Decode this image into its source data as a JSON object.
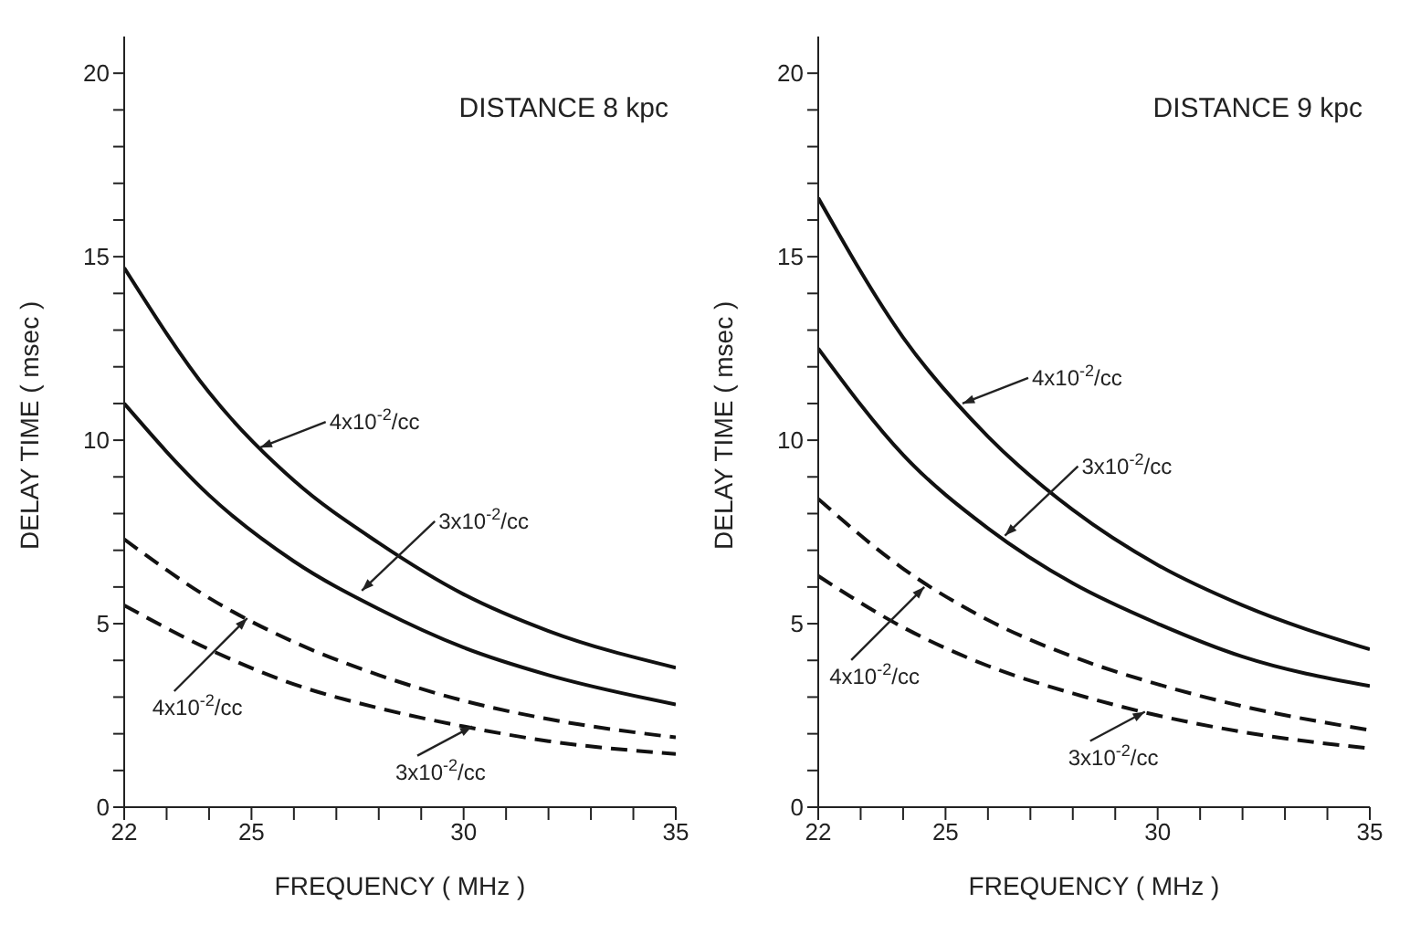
{
  "chart_data": [
    {
      "type": "line",
      "title": "DISTANCE 8 kpc",
      "xlabel": "FREQUENCY ( MHz )",
      "ylabel": "DELAY TIME ( msec )",
      "x": [
        22,
        24,
        26,
        28,
        30,
        32,
        35
      ],
      "series": [
        {
          "color": "#111111",
          "line_style": "solid",
          "values": [
            14.7,
            11.3,
            8.9,
            7.2,
            5.8,
            4.8,
            3.8
          ]
        },
        {
          "color": "#111111",
          "line_style": "solid",
          "values": [
            11.0,
            8.5,
            6.7,
            5.4,
            4.35,
            3.6,
            2.8
          ]
        },
        {
          "color": "#111111",
          "line_style": "dashed",
          "values": [
            7.3,
            5.7,
            4.5,
            3.6,
            2.9,
            2.4,
            1.9
          ]
        },
        {
          "color": "#111111",
          "line_style": "dashed",
          "values": [
            5.5,
            4.3,
            3.35,
            2.7,
            2.2,
            1.8,
            1.45
          ]
        }
      ],
      "annotations": [
        {
          "text": "4x10$^{-2}$/cc",
          "x": 25.2,
          "y": 9.8
        },
        {
          "text": "3x10$^{-2}$/cc",
          "x": 27.6,
          "y": 5.9
        },
        {
          "text": "4x10$^{-2}$/cc",
          "x": 24.9,
          "y": 5.15
        },
        {
          "text": "3x10$^{-2}$/cc",
          "x": 30.2,
          "y": 2.2
        }
      ],
      "xlim": [
        22,
        35
      ],
      "xticks": [
        22,
        {
          "value": 23,
          "label": null
        },
        {
          "value": 24,
          "label": null
        },
        25,
        {
          "value": 26,
          "label": null
        },
        {
          "value": 27,
          "label": null
        },
        {
          "value": 28,
          "label": null
        },
        {
          "value": 29,
          "label": null
        },
        30,
        {
          "value": 31,
          "label": null
        },
        {
          "value": 32,
          "label": null
        },
        {
          "value": 33,
          "label": null
        },
        {
          "value": 34,
          "label": null
        },
        35
      ],
      "ylim": [
        0,
        21
      ],
      "yticks": [
        0,
        {
          "value": 1,
          "label": null
        },
        {
          "value": 2,
          "label": null
        },
        {
          "value": 3,
          "label": null
        },
        {
          "value": 4,
          "label": null
        },
        5,
        {
          "value": 6,
          "label": null
        },
        {
          "value": 7,
          "label": null
        },
        {
          "value": 8,
          "label": null
        },
        {
          "value": 9,
          "label": null
        },
        10,
        {
          "value": 11,
          "label": null
        },
        {
          "value": 12,
          "label": null
        },
        {
          "value": 13,
          "label": null
        },
        {
          "value": 14,
          "label": null
        },
        15,
        {
          "value": 16,
          "label": null
        },
        {
          "value": 17,
          "label": null
        },
        {
          "value": 18,
          "label": null
        },
        {
          "value": 19,
          "label": null
        },
        20
      ],
      "grid": false,
      "legend": false,
      "marker": "none"
    },
    {
      "type": "line",
      "title": "DISTANCE 9 kpc",
      "xlabel": "FREQUENCY ( MHz )",
      "ylabel": "DELAY TIME ( msec )",
      "x": [
        22,
        24,
        26,
        28,
        30,
        32,
        35
      ],
      "series": [
        {
          "color": "#111111",
          "line_style": "solid",
          "values": [
            16.6,
            12.8,
            10.1,
            8.1,
            6.6,
            5.5,
            4.3
          ]
        },
        {
          "color": "#111111",
          "line_style": "solid",
          "values": [
            12.5,
            9.6,
            7.6,
            6.1,
            5.0,
            4.1,
            3.3
          ]
        },
        {
          "color": "#111111",
          "line_style": "dashed",
          "values": [
            8.4,
            6.5,
            5.1,
            4.1,
            3.35,
            2.75,
            2.1
          ]
        },
        {
          "color": "#111111",
          "line_style": "dashed",
          "values": [
            6.3,
            4.9,
            3.85,
            3.1,
            2.5,
            2.05,
            1.6
          ]
        }
      ],
      "annotations": [
        {
          "text": "4x10$^{-2}$/cc",
          "x": 25.4,
          "y": 11.0
        },
        {
          "text": "3x10$^{-2}$/cc",
          "x": 26.4,
          "y": 7.4
        },
        {
          "text": "4x10$^{-2}$/cc",
          "x": 24.5,
          "y": 6.0
        },
        {
          "text": "3x10$^{-2}$/cc",
          "x": 29.7,
          "y": 2.6
        }
      ],
      "xlim": [
        22,
        35
      ],
      "xticks": [
        22,
        {
          "value": 23,
          "label": null
        },
        {
          "value": 24,
          "label": null
        },
        25,
        {
          "value": 26,
          "label": null
        },
        {
          "value": 27,
          "label": null
        },
        {
          "value": 28,
          "label": null
        },
        {
          "value": 29,
          "label": null
        },
        30,
        {
          "value": 31,
          "label": null
        },
        {
          "value": 32,
          "label": null
        },
        {
          "value": 33,
          "label": null
        },
        {
          "value": 34,
          "label": null
        },
        35
      ],
      "ylim": [
        0,
        21
      ],
      "yticks": [
        0,
        {
          "value": 1,
          "label": null
        },
        {
          "value": 2,
          "label": null
        },
        {
          "value": 3,
          "label": null
        },
        {
          "value": 4,
          "label": null
        },
        5,
        {
          "value": 6,
          "label": null
        },
        {
          "value": 7,
          "label": null
        },
        {
          "value": 8,
          "label": null
        },
        {
          "value": 9,
          "label": null
        },
        10,
        {
          "value": 11,
          "label": null
        },
        {
          "value": 12,
          "label": null
        },
        {
          "value": 13,
          "label": null
        },
        {
          "value": 14,
          "label": null
        },
        15,
        {
          "value": 16,
          "label": null
        },
        {
          "value": 17,
          "label": null
        },
        {
          "value": 18,
          "label": null
        },
        {
          "value": 19,
          "label": null
        },
        20
      ],
      "grid": false,
      "legend": false,
      "marker": "none"
    }
  ]
}
